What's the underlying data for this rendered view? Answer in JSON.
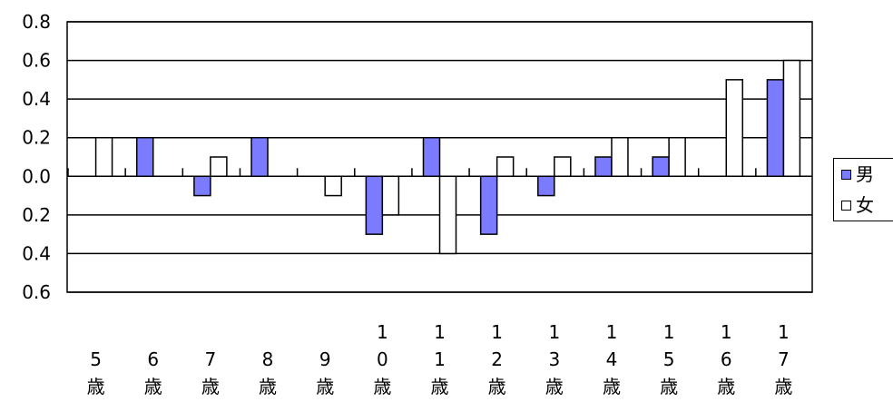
{
  "chart_data": {
    "type": "bar",
    "categories": [
      [
        "5",
        "歳"
      ],
      [
        "6",
        "歳"
      ],
      [
        "7",
        "歳"
      ],
      [
        "8",
        "歳"
      ],
      [
        "9",
        "歳"
      ],
      [
        "1",
        "0",
        "歳"
      ],
      [
        "1",
        "1",
        "歳"
      ],
      [
        "1",
        "2",
        "歳"
      ],
      [
        "1",
        "3",
        "歳"
      ],
      [
        "1",
        "4",
        "歳"
      ],
      [
        "1",
        "5",
        "歳"
      ],
      [
        "1",
        "6",
        "歳"
      ],
      [
        "1",
        "7",
        "歳"
      ]
    ],
    "series": [
      {
        "name": "男",
        "color": "#7b7bff",
        "values": [
          0.0,
          0.2,
          -0.1,
          0.2,
          0.0,
          -0.3,
          0.2,
          -0.3,
          -0.1,
          0.1,
          0.1,
          0.0,
          0.5
        ]
      },
      {
        "name": "女",
        "color": "#ffffff",
        "values": [
          0.2,
          0.0,
          0.1,
          0.0,
          -0.1,
          -0.2,
          -0.4,
          0.1,
          0.1,
          0.2,
          0.2,
          0.5,
          0.6
        ]
      }
    ],
    "ylim": [
      -0.6,
      0.8
    ],
    "yticks": [
      0.8,
      0.6,
      0.4,
      0.2,
      0.0,
      -0.2,
      -0.4,
      -0.6
    ],
    "ytick_labels": [
      "0.8",
      "0.6",
      "0.4",
      "0.2",
      "0.0",
      "0.2",
      "0.4",
      "0.6"
    ],
    "grid": true,
    "legend_position": "right"
  }
}
